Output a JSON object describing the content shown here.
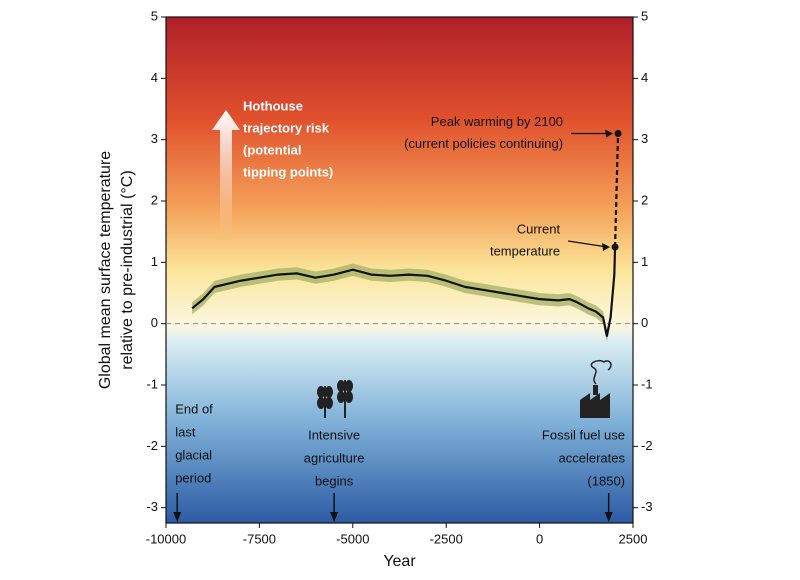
{
  "chart_data": {
    "type": "line",
    "x_label": "Year",
    "y_label": [
      "Global mean surface temperature",
      "relative to pre-industrial (°C)"
    ],
    "xlim": [
      -10000,
      2500
    ],
    "ylim": [
      -3.25,
      5
    ],
    "xticks": [
      -10000,
      -7500,
      -5000,
      -2500,
      0,
      2500
    ],
    "yticks": [
      -3,
      -2,
      -1,
      0,
      1,
      2,
      3,
      4,
      5
    ],
    "reference_line": 0,
    "series": [
      {
        "color": "#111111",
        "band_color": "#a9b46a",
        "band": 0.1,
        "x": [
          -9300,
          -9000,
          -8700,
          -8000,
          -7000,
          -6500,
          -6000,
          -5500,
          -5000,
          -4500,
          -4000,
          -3500,
          -3000,
          -2500,
          -2000,
          -1500,
          -1000,
          -500,
          0,
          500,
          800,
          1000,
          1300,
          1500,
          1700,
          1800,
          1850,
          1900,
          2000,
          2020
        ],
        "values": [
          0.25,
          0.4,
          0.6,
          0.7,
          0.8,
          0.82,
          0.75,
          0.8,
          0.88,
          0.8,
          0.78,
          0.8,
          0.78,
          0.7,
          0.6,
          0.55,
          0.5,
          0.45,
          0.4,
          0.38,
          0.4,
          0.35,
          0.25,
          0.2,
          0.1,
          -0.2,
          -0.05,
          0.1,
          0.8,
          1.25
        ]
      },
      {
        "color": "#111111",
        "dashed": true,
        "x": [
          2020,
          2100
        ],
        "values": [
          1.25,
          3.1
        ]
      }
    ],
    "points": [
      {
        "x": 2020,
        "y": 1.25,
        "label": [
          "Current",
          "temperature"
        ]
      },
      {
        "x": 2100,
        "y": 3.1,
        "label": [
          "Peak warming by 2100",
          "(current policies continuing)"
        ]
      }
    ],
    "hothouse": [
      "Hothouse",
      "trajectory risk",
      "(potential",
      "tipping points)"
    ],
    "events": [
      {
        "x": -9700,
        "label": [
          "End of",
          "last",
          "glacial",
          "period"
        ]
      },
      {
        "x": -5500,
        "label": [
          "Intensive",
          "agriculture",
          "begins"
        ]
      },
      {
        "x": 1850,
        "label": [
          "Fossil fuel use",
          "accelerates",
          "(1850)"
        ]
      }
    ]
  }
}
